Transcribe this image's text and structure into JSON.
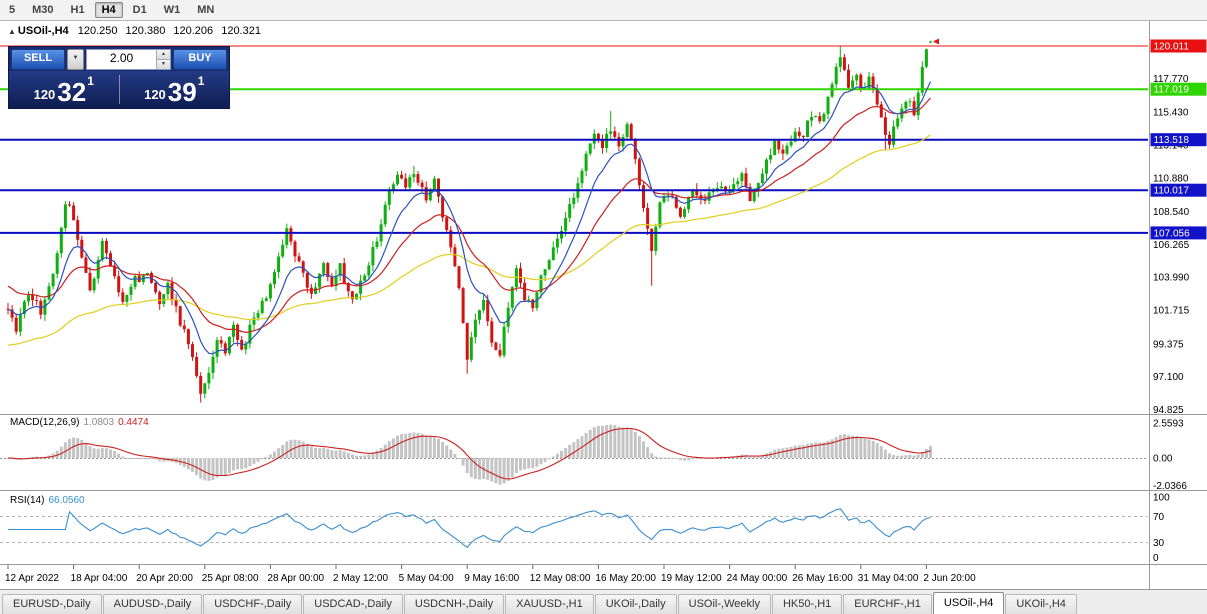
{
  "icons": {
    "collapse": "▲",
    "chevron_down": "▼",
    "stepper_up": "▲",
    "stepper_down": "▼"
  },
  "toolbar": {
    "timeframes": [
      "5",
      "M30",
      "H1",
      "H4",
      "D1",
      "W1",
      "MN"
    ],
    "active_index": 3
  },
  "chart_header": {
    "symbol": "USOil-,H4",
    "open": "120.250",
    "high": "120.380",
    "low": "120.206",
    "close": "120.321"
  },
  "trade_widget": {
    "sell_label": "SELL",
    "buy_label": "BUY",
    "volume": "2.00",
    "sell_big": "120",
    "sell_pips": "32",
    "sell_sup": "1",
    "buy_big": "120",
    "buy_pips": "39",
    "buy_sup": "1"
  },
  "price_axis": {
    "ticks": [
      "117.770",
      "115.430",
      "113.140",
      "110.880",
      "108.540",
      "106.265",
      "103.990",
      "101.715",
      "99.375",
      "97.100",
      "94.825"
    ]
  },
  "levels": [
    {
      "label": "120.011",
      "price": 120.011,
      "color": "#ee1111",
      "badge": "#e81010",
      "width": 1
    },
    {
      "label": "117.019",
      "price": 117.019,
      "color": "#2fd500",
      "badge": "#2fd500",
      "width": 2
    },
    {
      "label": "113.518",
      "price": 113.518,
      "color": "#0a0ac0",
      "badge": "#1212c8",
      "width": 2
    },
    {
      "label": "110.017",
      "price": 110.017,
      "color": "#0a0ac0",
      "badge": "#1212c8",
      "width": 2
    },
    {
      "label": "107.056",
      "price": 107.056,
      "color": "#0a0ac0",
      "badge": "#1212c8",
      "width": 2
    }
  ],
  "macd_panel": {
    "name": "MACD(12,26,9)",
    "value_macd": "1.0803",
    "value_signal": "0.4474",
    "axis": [
      {
        "label": "2.5593",
        "value": 2.5593
      },
      {
        "label": "0.00",
        "value": 0
      },
      {
        "label": "-2.0366",
        "value": -2.0366
      }
    ],
    "colors": {
      "histogram": "#c4c4c4",
      "signal": "#cc1f1f"
    }
  },
  "rsi_panel": {
    "name": "RSI(14)",
    "value": "66.0560",
    "period": 14,
    "axis": [
      {
        "label": "100",
        "value": 100
      },
      {
        "label": "70",
        "value": 70
      },
      {
        "label": "30",
        "value": 30
      },
      {
        "label": "0",
        "value": 0
      }
    ],
    "guide_levels": [
      70,
      30
    ],
    "color": "#3a8fd0"
  },
  "time_axis": {
    "labels": [
      "12 Apr 2022",
      "18 Apr 04:00",
      "20 Apr 20:00",
      "25 Apr 08:00",
      "28 Apr 00:00",
      "2 May 12:00",
      "5 May 04:00",
      "9 May 16:00",
      "12 May 08:00",
      "16 May 20:00",
      "19 May 12:00",
      "24 May 00:00",
      "26 May 16:00",
      "31 May 04:00",
      "2 Jun 20:00"
    ],
    "candles_per_label": 16
  },
  "tabs": {
    "items": [
      "EURUSD-,Daily",
      "AUDUSD-,Daily",
      "USDCHF-,Daily",
      "USDCAD-,Daily",
      "USDCNH-,Daily",
      "XAUUSD-,H1",
      "UKOil-,Daily",
      "USOil-,Weekly",
      "HK50-,H1",
      "EURCHF-,H1",
      "USOil-,H4",
      "UKOil-,H4"
    ],
    "active_index": 10
  },
  "chart_data": {
    "type": "candlestick",
    "symbol": "USOil",
    "timeframe": "H4",
    "count": 226,
    "colors": {
      "up": "#0faf0f",
      "down": "#d01414"
    },
    "y_axis": {
      "min": 94.6,
      "max": 121.8
    },
    "last_candle": {
      "open": 120.25,
      "high": 120.38,
      "low": 120.206,
      "close": 120.321
    },
    "noise": 0.3,
    "wick": 0.45,
    "price_anchors": [
      [
        0,
        101.8
      ],
      [
        2,
        100.4
      ],
      [
        5,
        103.0
      ],
      [
        8,
        101.6
      ],
      [
        11,
        104.0
      ],
      [
        14,
        108.9
      ],
      [
        15,
        109.2
      ],
      [
        17,
        106.5
      ],
      [
        20,
        103.0
      ],
      [
        23,
        106.4
      ],
      [
        25,
        104.8
      ],
      [
        28,
        102.4
      ],
      [
        31,
        103.8
      ],
      [
        34,
        104.2
      ],
      [
        37,
        102.2
      ],
      [
        39,
        103.4
      ],
      [
        42,
        100.9
      ],
      [
        45,
        98.6
      ],
      [
        47,
        95.9
      ],
      [
        48,
        96.4
      ],
      [
        51,
        99.8
      ],
      [
        53,
        99.0
      ],
      [
        55,
        100.7
      ],
      [
        57,
        98.8
      ],
      [
        60,
        101.3
      ],
      [
        63,
        102.7
      ],
      [
        66,
        105.3
      ],
      [
        68,
        107.3
      ],
      [
        71,
        104.9
      ],
      [
        74,
        102.8
      ],
      [
        77,
        105.0
      ],
      [
        79,
        103.4
      ],
      [
        81,
        104.7
      ],
      [
        84,
        102.2
      ],
      [
        87,
        104.1
      ],
      [
        89,
        105.8
      ],
      [
        91,
        107.7
      ],
      [
        93,
        109.8
      ],
      [
        95,
        110.9
      ],
      [
        97,
        110.4
      ],
      [
        99,
        111.3
      ],
      [
        102,
        109.6
      ],
      [
        104,
        110.8
      ],
      [
        106,
        108.4
      ],
      [
        108,
        105.9
      ],
      [
        110,
        103.0
      ],
      [
        112,
        98.3
      ],
      [
        114,
        100.8
      ],
      [
        116,
        102.3
      ],
      [
        118,
        99.3
      ],
      [
        120,
        98.7
      ],
      [
        122,
        101.9
      ],
      [
        124,
        104.7
      ],
      [
        126,
        102.5
      ],
      [
        128,
        101.9
      ],
      [
        130,
        103.9
      ],
      [
        133,
        105.9
      ],
      [
        136,
        108.1
      ],
      [
        139,
        110.3
      ],
      [
        141,
        112.4
      ],
      [
        143,
        113.9
      ],
      [
        145,
        112.9
      ],
      [
        147,
        114.4
      ],
      [
        149,
        113.2
      ],
      [
        151,
        114.5
      ],
      [
        153,
        112.2
      ],
      [
        155,
        108.9
      ],
      [
        157,
        105.8
      ],
      [
        159,
        108.9
      ],
      [
        161,
        109.9
      ],
      [
        164,
        108.3
      ],
      [
        167,
        110.1
      ],
      [
        170,
        109.2
      ],
      [
        173,
        110.4
      ],
      [
        176,
        109.9
      ],
      [
        179,
        110.9
      ],
      [
        181,
        109.5
      ],
      [
        184,
        111.4
      ],
      [
        187,
        113.3
      ],
      [
        189,
        112.4
      ],
      [
        192,
        114.1
      ],
      [
        194,
        113.9
      ],
      [
        196,
        115.2
      ],
      [
        198,
        114.6
      ],
      [
        200,
        116.2
      ],
      [
        202,
        118.4
      ],
      [
        203,
        119.4
      ],
      [
        205,
        117.4
      ],
      [
        207,
        118.2
      ],
      [
        208,
        116.9
      ],
      [
        210,
        117.8
      ],
      [
        212,
        116.2
      ],
      [
        214,
        113.9
      ],
      [
        215,
        113.4
      ],
      [
        217,
        115.2
      ],
      [
        219,
        116.4
      ],
      [
        221,
        115.4
      ],
      [
        222,
        117.0
      ],
      [
        223,
        118.6
      ],
      [
        224,
        119.9
      ],
      [
        225,
        120.32
      ]
    ],
    "wick_events": [
      {
        "i": 47,
        "low": 95.3
      },
      {
        "i": 99,
        "high": 111.7
      },
      {
        "i": 112,
        "low": 97.3
      },
      {
        "i": 147,
        "high": 115.5
      },
      {
        "i": 157,
        "low": 103.4
      },
      {
        "i": 203,
        "high": 119.98
      },
      {
        "i": 214,
        "low": 112.8
      }
    ],
    "moving_averages": [
      {
        "period": 70,
        "color": "#e2ce1b",
        "init": 99.2
      },
      {
        "period": 25,
        "color": "#cc1f1f",
        "init": 103.5
      },
      {
        "period": 10,
        "color": "#2a52be",
        "init": null
      }
    ],
    "macd_params": {
      "fast": 12,
      "slow": 26,
      "signal": 9
    },
    "rsi_period": 14
  }
}
